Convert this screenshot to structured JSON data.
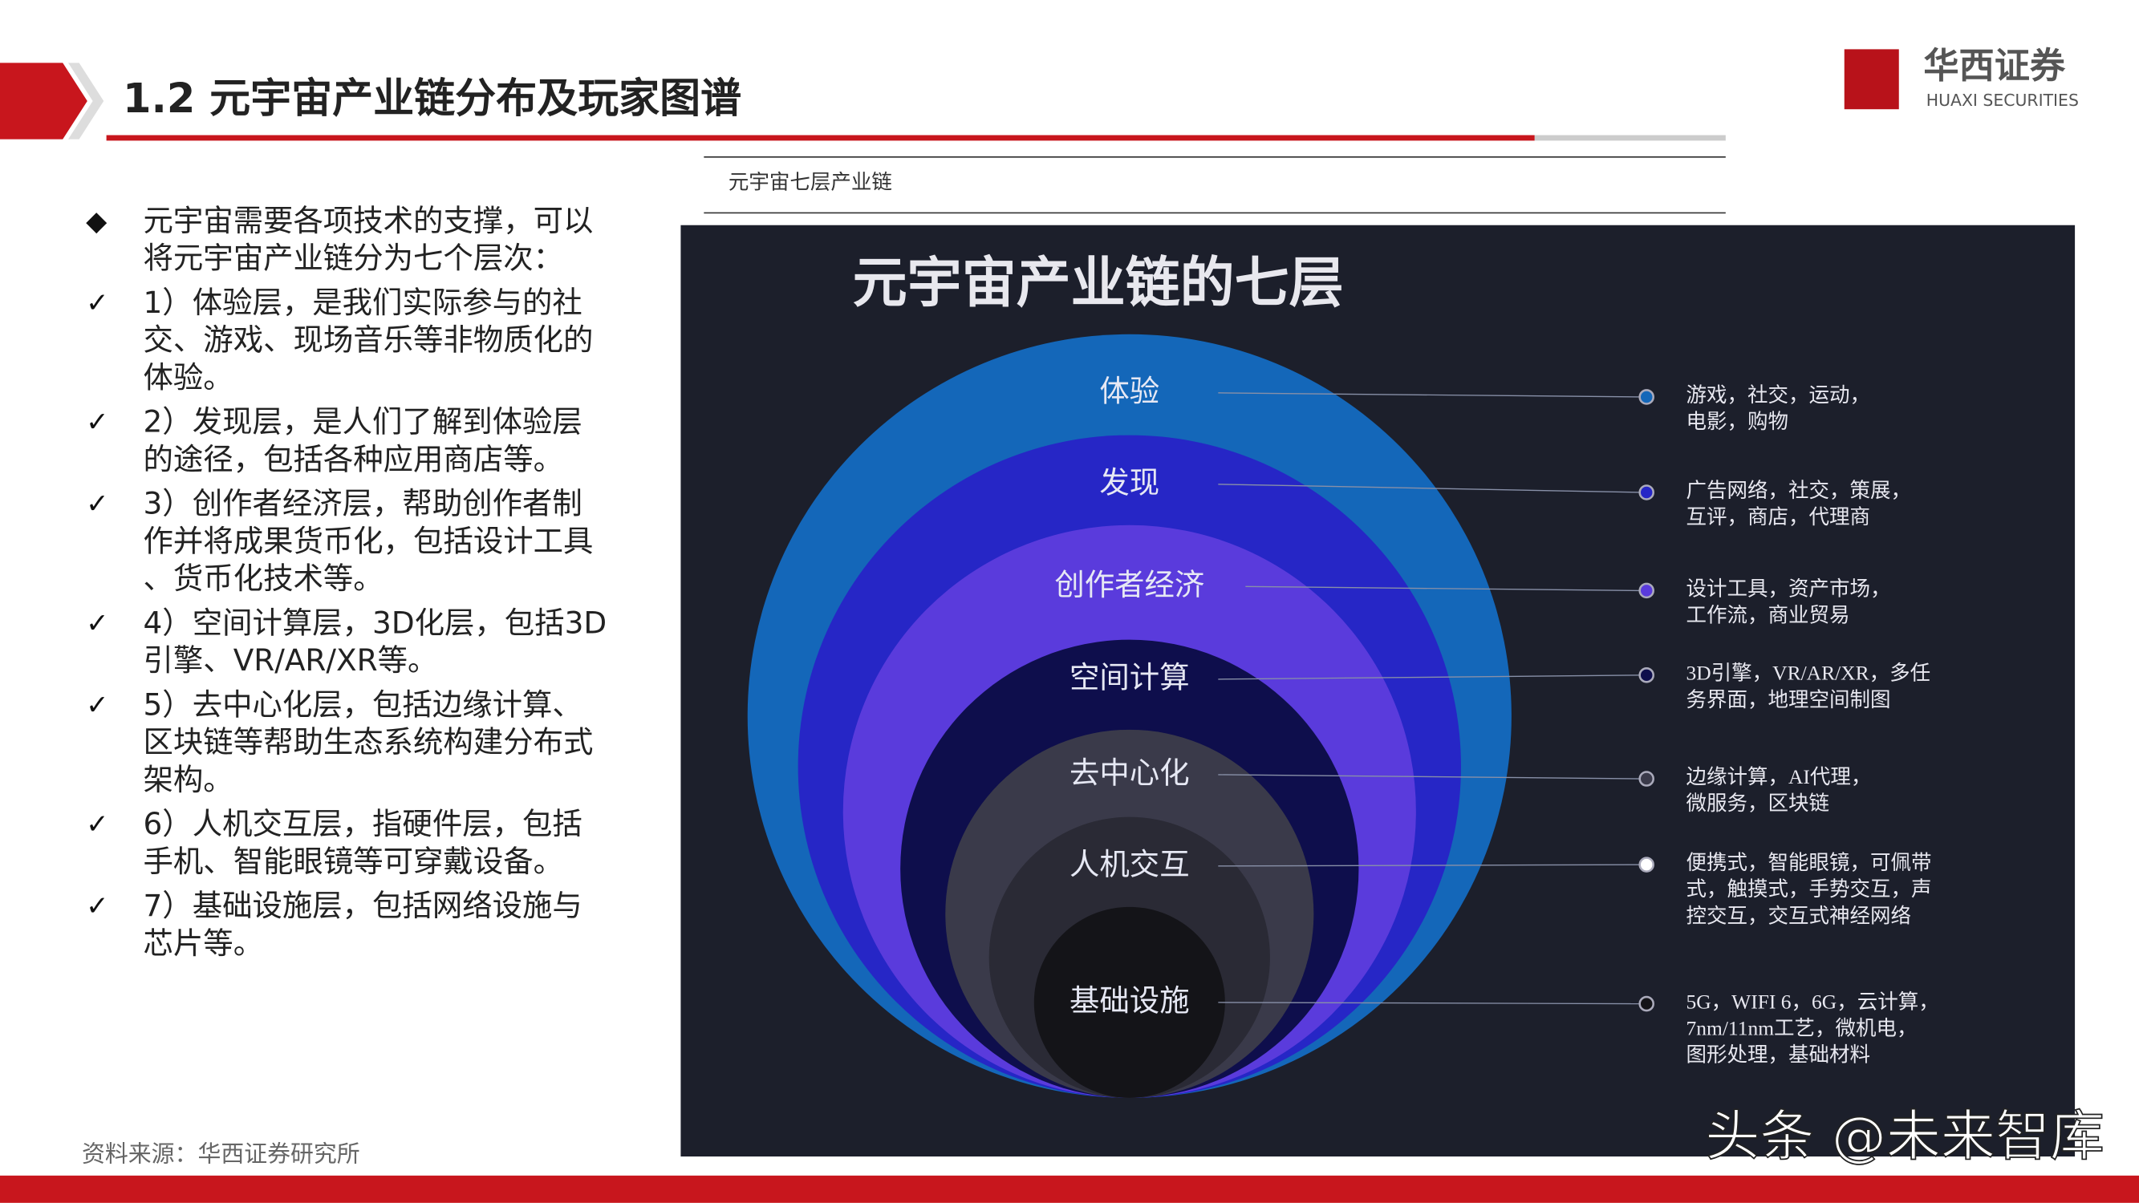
{
  "header": {
    "title": "1.2 元宇宙产业链分布及玩家图谱",
    "logo_cn": "华西证券",
    "logo_en": "HUAXI SECURITIES"
  },
  "bullets": [
    {
      "mark": "◆",
      "lines": [
        "元宇宙需要各项技术的支撑，可以",
        "将元宇宙产业链分为七个层次："
      ]
    },
    {
      "mark": "✓",
      "lines": [
        "1）体验层，是我们实际参与的社",
        "交、游戏、现场音乐等非物质化的",
        "体验。"
      ]
    },
    {
      "mark": "✓",
      "lines": [
        "2）发现层，是人们了解到体验层",
        "的途径，包括各种应用商店等。"
      ]
    },
    {
      "mark": "✓",
      "lines": [
        "3）创作者经济层，帮助创作者制",
        "作并将成果货币化，包括设计工具",
        "、货币化技术等。"
      ]
    },
    {
      "mark": "✓",
      "lines": [
        "4）空间计算层，3D化层，包括3D",
        "引擎、VR/AR/XR等。"
      ]
    },
    {
      "mark": "✓",
      "lines": [
        "5）去中心化层，包括边缘计算、",
        "区块链等帮助生态系统构建分布式",
        "架构。"
      ]
    },
    {
      "mark": "✓",
      "lines": [
        "6）人机交互层，指硬件层，包括",
        "手机、智能眼镜等可穿戴设备。"
      ]
    },
    {
      "mark": "✓",
      "lines": [
        "7）基础设施层，包括网络设施与",
        "芯片等。"
      ]
    }
  ],
  "figure": {
    "caption": "元宇宙七层产业链",
    "title": "元宇宙产业链的七层",
    "layers": [
      {
        "label": "体验",
        "color": "#1467b9",
        "desc": [
          "游戏，社交，运动，",
          "电影，购物"
        ]
      },
      {
        "label": "发现",
        "color": "#2626c6",
        "desc": [
          "广告网络，社交，策展，",
          "互评，商店，代理商"
        ]
      },
      {
        "label": "创作者经济",
        "color": "#5a3bdc",
        "desc": [
          "设计工具，资产市场，",
          "工作流，商业贸易"
        ]
      },
      {
        "label": "空间计算",
        "color": "#0e0e4c",
        "desc": [
          "3D引擎，VR/AR/XR，多任",
          "务界面，地理空间制图"
        ]
      },
      {
        "label": "去中心化",
        "color": "#3a3a4a",
        "desc": [
          "边缘计算，AI代理，",
          "微服务，区块链"
        ]
      },
      {
        "label": "人机交互",
        "color": "#2a2a35",
        "desc": [
          "便携式，智能眼镜，可佩带",
          "式，触摸式，手势交互，声",
          "控交互，交互式神经网络"
        ]
      },
      {
        "label": "基础设施",
        "color": "#141418",
        "desc": [
          "5G，WIFI 6，6G，云计算，",
          "7nm/11nm工艺，微机电，",
          "图形处理，基础材料"
        ]
      }
    ]
  },
  "source": "资料来源：华西证券研究所",
  "watermark": "头条 @未来智库"
}
